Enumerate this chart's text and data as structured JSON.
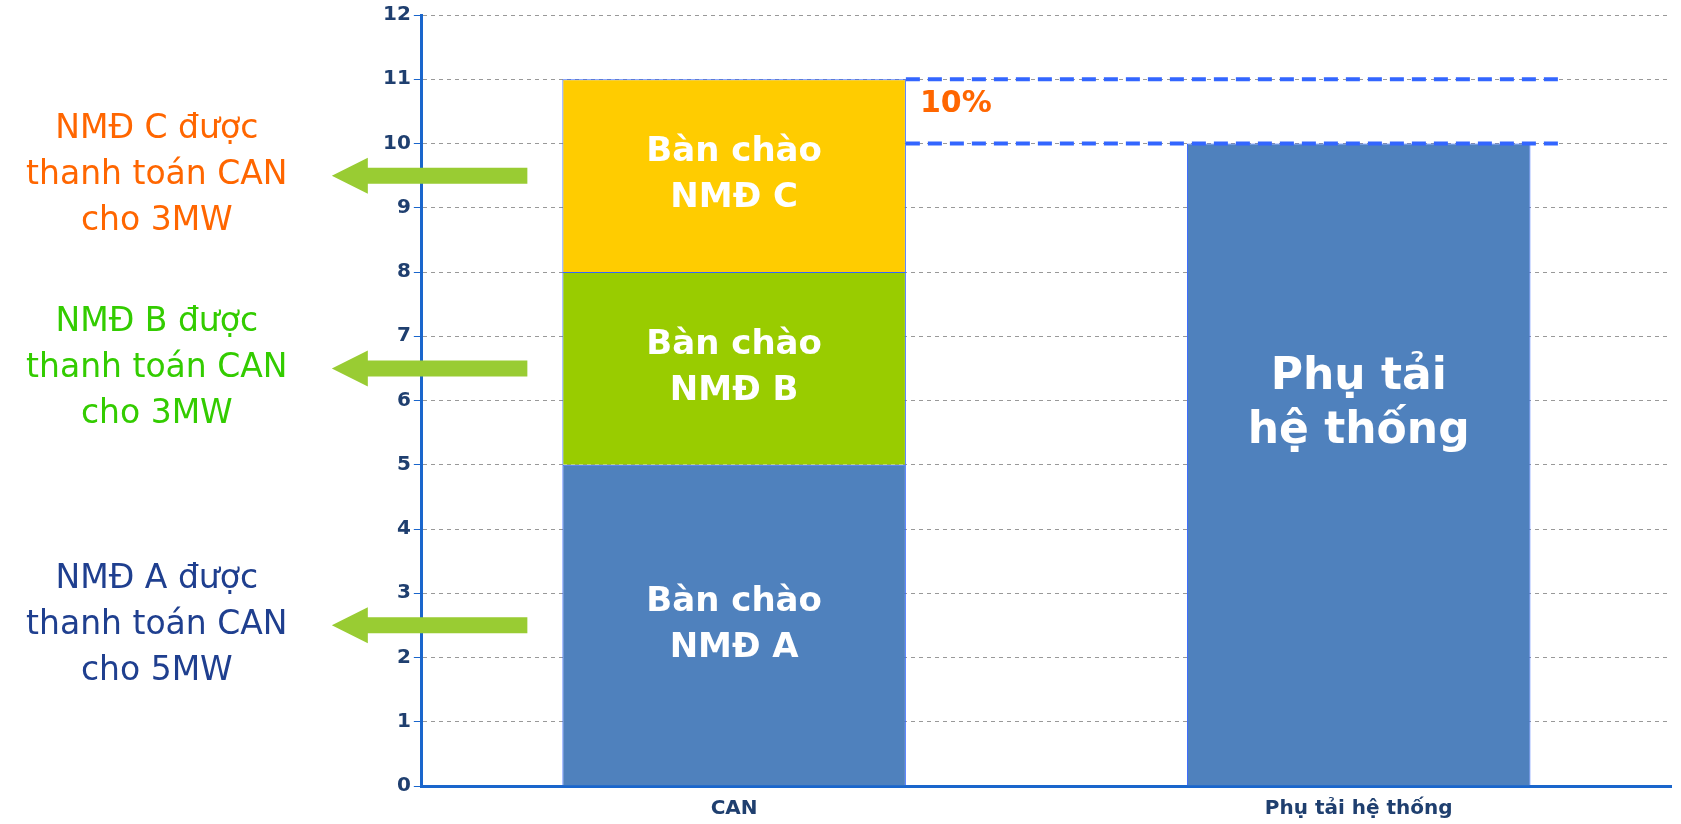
{
  "chart_data": {
    "type": "bar",
    "stacked": true,
    "categories": [
      "CAN",
      "Phụ tải hệ thống"
    ],
    "series": [
      {
        "name": "Bàn chào NMĐ A",
        "color": "#4f81bd",
        "values": [
          5,
          null
        ]
      },
      {
        "name": "Bàn chào NMĐ B",
        "color": "#99cc00",
        "values": [
          3,
          null
        ]
      },
      {
        "name": "Bàn chào NMĐ C",
        "color": "#ffcc00",
        "values": [
          3,
          null
        ]
      },
      {
        "name": "Phụ tải hệ thống",
        "color": "#4f81bd",
        "values": [
          null,
          10
        ]
      }
    ],
    "ylim": [
      0,
      12
    ],
    "yticks": [
      0,
      1,
      2,
      3,
      4,
      5,
      6,
      7,
      8,
      9,
      10,
      11,
      12
    ],
    "grid": "y",
    "legend": false,
    "ref_lines": [
      {
        "axis": "y",
        "value": 11,
        "color": "#3366ff",
        "line_style": "dashed"
      },
      {
        "axis": "y",
        "value": 10,
        "color": "#3366ff",
        "line_style": "dashed"
      }
    ],
    "annotations": [
      "NMĐ C được thanh toán CAN cho 3MW",
      "NMĐ B được thanh toán CAN cho 3MW",
      "NMĐ A được thanh toán CAN cho 5MW",
      "10%"
    ]
  }
}
